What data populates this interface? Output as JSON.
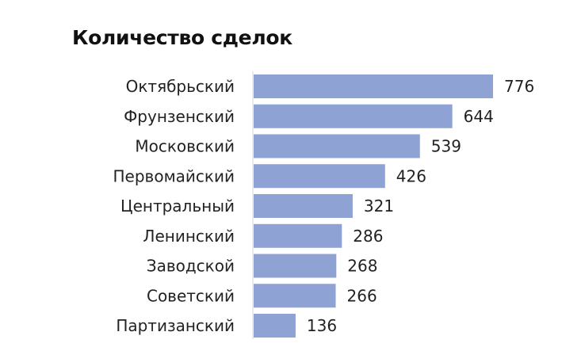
{
  "chart_data": {
    "type": "bar",
    "orientation": "horizontal",
    "title": "Количество сделок",
    "categories": [
      "Октябрьский",
      "Фрунзенский",
      "Московский",
      "Первомайский",
      "Центральный",
      "Ленинский",
      "Заводской",
      "Советский",
      "Партизанский"
    ],
    "values": [
      776,
      644,
      539,
      426,
      321,
      286,
      268,
      266,
      136
    ],
    "xlabel": "",
    "ylabel": "",
    "xlim": [
      0,
      776
    ],
    "grid": false,
    "data_labels": true,
    "bar_color": "#8fa2d4"
  }
}
